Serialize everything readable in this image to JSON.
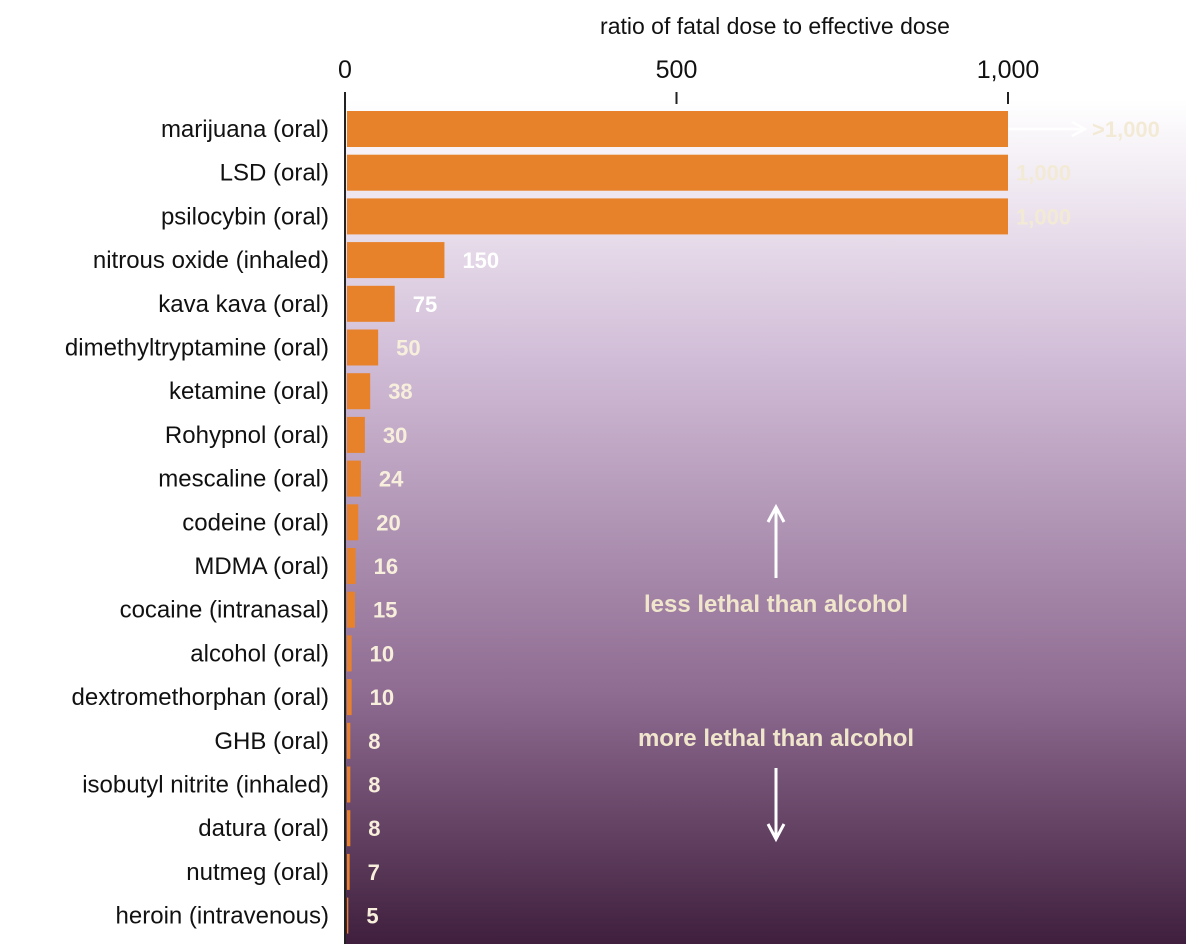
{
  "chart_data": {
    "type": "bar",
    "orientation": "horizontal",
    "xlabel": "ratio of fatal dose to effective dose",
    "xlim": [
      0,
      1000
    ],
    "xticks": [
      {
        "value": 0,
        "label": "0"
      },
      {
        "value": 500,
        "label": "500"
      },
      {
        "value": 1000,
        "label": "1,000"
      }
    ],
    "bar_color": "#e8822a",
    "background_gradient": [
      "#ffffff",
      "#d2bed8",
      "#8f6c92",
      "#3f1f3d"
    ],
    "categories": [
      "marijuana (oral)",
      "LSD (oral)",
      "psilocybin (oral)",
      "nitrous oxide (inhaled)",
      "kava kava (oral)",
      "dimethyltryptamine (oral)",
      "ketamine (oral)",
      "Rohypnol (oral)",
      "mescaline (oral)",
      "codeine (oral)",
      "MDMA (oral)",
      "cocaine (intranasal)",
      "alcohol (oral)",
      "dextromethorphan (oral)",
      "GHB (oral)",
      "isobutyl nitrite (inhaled)",
      "datura (oral)",
      "nutmeg (oral)",
      "heroin (intravenous)"
    ],
    "values": [
      1000,
      1000,
      1000,
      150,
      75,
      50,
      38,
      30,
      24,
      20,
      16,
      15,
      10,
      10,
      8,
      8,
      8,
      7,
      5
    ],
    "value_labels": [
      ">1,000",
      "1,000",
      "1,000",
      "150",
      "75",
      "50",
      "38",
      "30",
      "24",
      "20",
      "16",
      "15",
      "10",
      "10",
      "8",
      "8",
      "8",
      "7",
      "5"
    ],
    "annotations": [
      {
        "text": "less lethal than alcohol",
        "arrow": "up"
      },
      {
        "text": "more lethal than alcohol",
        "arrow": "down"
      }
    ]
  }
}
